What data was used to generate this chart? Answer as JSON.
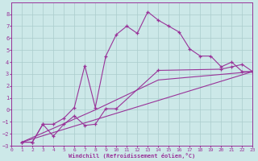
{
  "xlabel": "Windchill (Refroidissement éolien,°C)",
  "background_color": "#cce8e8",
  "grid_color": "#aacccc",
  "line_color": "#993399",
  "xlim": [
    0,
    23
  ],
  "ylim": [
    -3,
    9
  ],
  "xticks": [
    0,
    1,
    2,
    3,
    4,
    5,
    6,
    7,
    8,
    9,
    10,
    11,
    12,
    13,
    14,
    15,
    16,
    17,
    18,
    19,
    20,
    21,
    22,
    23
  ],
  "yticks": [
    -3,
    -2,
    -1,
    0,
    1,
    2,
    3,
    4,
    5,
    6,
    7,
    8
  ],
  "line1_x": [
    1,
    2,
    3,
    4,
    5,
    6,
    7,
    8,
    9,
    10,
    11,
    12,
    13,
    14,
    15,
    16,
    17,
    18,
    19,
    20,
    21,
    22,
    23
  ],
  "line1_y": [
    -2.7,
    -2.7,
    -1.2,
    -1.2,
    -0.7,
    0.2,
    3.7,
    0.2,
    4.5,
    6.3,
    7.0,
    6.4,
    8.2,
    7.5,
    7.0,
    6.5,
    5.1,
    4.5,
    4.5,
    3.6,
    4.0,
    3.2,
    3.2
  ],
  "line2_x": [
    1,
    2,
    3,
    4,
    5,
    6,
    7,
    8,
    9,
    10,
    14,
    20,
    21,
    22,
    23
  ],
  "line2_y": [
    -2.7,
    -2.7,
    -1.2,
    -2.2,
    -1.2,
    -0.5,
    -1.3,
    -1.2,
    0.1,
    0.1,
    3.3,
    3.4,
    3.6,
    3.8,
    3.2
  ],
  "line3_x": [
    1,
    8,
    14,
    23
  ],
  "line3_y": [
    -2.7,
    0.0,
    2.5,
    3.2
  ],
  "line4_x": [
    1,
    23
  ],
  "line4_y": [
    -2.7,
    3.2
  ]
}
